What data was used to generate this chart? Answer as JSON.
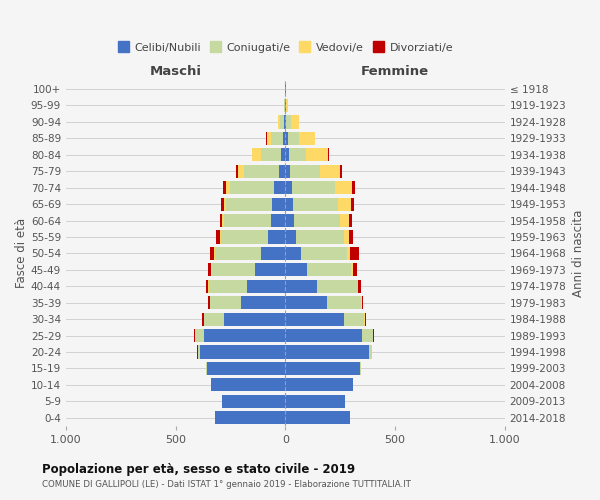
{
  "age_groups": [
    "0-4",
    "5-9",
    "10-14",
    "15-19",
    "20-24",
    "25-29",
    "30-34",
    "35-39",
    "40-44",
    "45-49",
    "50-54",
    "55-59",
    "60-64",
    "65-69",
    "70-74",
    "75-79",
    "80-84",
    "85-89",
    "90-94",
    "95-99",
    "100+"
  ],
  "birth_years": [
    "2014-2018",
    "2009-2013",
    "2004-2008",
    "1999-2003",
    "1994-1998",
    "1989-1993",
    "1984-1988",
    "1979-1983",
    "1974-1978",
    "1969-1973",
    "1964-1968",
    "1959-1963",
    "1954-1958",
    "1949-1953",
    "1944-1948",
    "1939-1943",
    "1934-1938",
    "1929-1933",
    "1924-1928",
    "1919-1923",
    "≤ 1918"
  ],
  "male": {
    "celibi": [
      320,
      290,
      340,
      355,
      390,
      370,
      280,
      200,
      175,
      140,
      110,
      80,
      65,
      60,
      50,
      30,
      20,
      10,
      5,
      2,
      2
    ],
    "coniugati": [
      0,
      0,
      0,
      5,
      10,
      40,
      90,
      145,
      175,
      195,
      210,
      215,
      215,
      210,
      200,
      160,
      90,
      55,
      20,
      3,
      1
    ],
    "vedovi": [
      0,
      0,
      0,
      0,
      0,
      0,
      0,
      0,
      1,
      2,
      3,
      5,
      8,
      10,
      20,
      25,
      40,
      20,
      8,
      1,
      0
    ],
    "divorziati": [
      0,
      0,
      0,
      0,
      2,
      5,
      8,
      8,
      10,
      15,
      20,
      15,
      12,
      12,
      12,
      8,
      4,
      2,
      1,
      0,
      0
    ]
  },
  "female": {
    "nubili": [
      295,
      270,
      310,
      340,
      380,
      350,
      265,
      190,
      145,
      100,
      70,
      50,
      40,
      35,
      30,
      20,
      15,
      10,
      5,
      2,
      2
    ],
    "coniugate": [
      0,
      0,
      0,
      5,
      15,
      50,
      95,
      155,
      185,
      200,
      210,
      215,
      210,
      205,
      195,
      140,
      80,
      50,
      20,
      3,
      1
    ],
    "vedove": [
      0,
      0,
      0,
      0,
      0,
      0,
      1,
      2,
      3,
      8,
      15,
      25,
      40,
      60,
      80,
      90,
      100,
      75,
      35,
      5,
      2
    ],
    "divorziate": [
      0,
      0,
      0,
      0,
      2,
      5,
      8,
      8,
      12,
      18,
      40,
      18,
      15,
      12,
      12,
      8,
      4,
      2,
      1,
      0,
      0
    ]
  },
  "colors": {
    "celibi": "#4472C4",
    "coniugati": "#C5D9A0",
    "vedovi": "#FFD966",
    "divorziati": "#C00000"
  },
  "legend_labels": [
    "Celibi/Nubili",
    "Coniugati/e",
    "Vedovi/e",
    "Divorziati/e"
  ],
  "xlim": 1000,
  "title": "Popolazione per età, sesso e stato civile - 2019",
  "subtitle": "COMUNE DI GALLIPOLI (LE) - Dati ISTAT 1° gennaio 2019 - Elaborazione TUTTITALIA.IT",
  "ylabel_left": "Fasce di età",
  "ylabel_right": "Anni di nascita",
  "xlabel_left": "Maschi",
  "xlabel_right": "Femmine",
  "background_color": "#f5f5f5",
  "grid_color": "#cccccc"
}
